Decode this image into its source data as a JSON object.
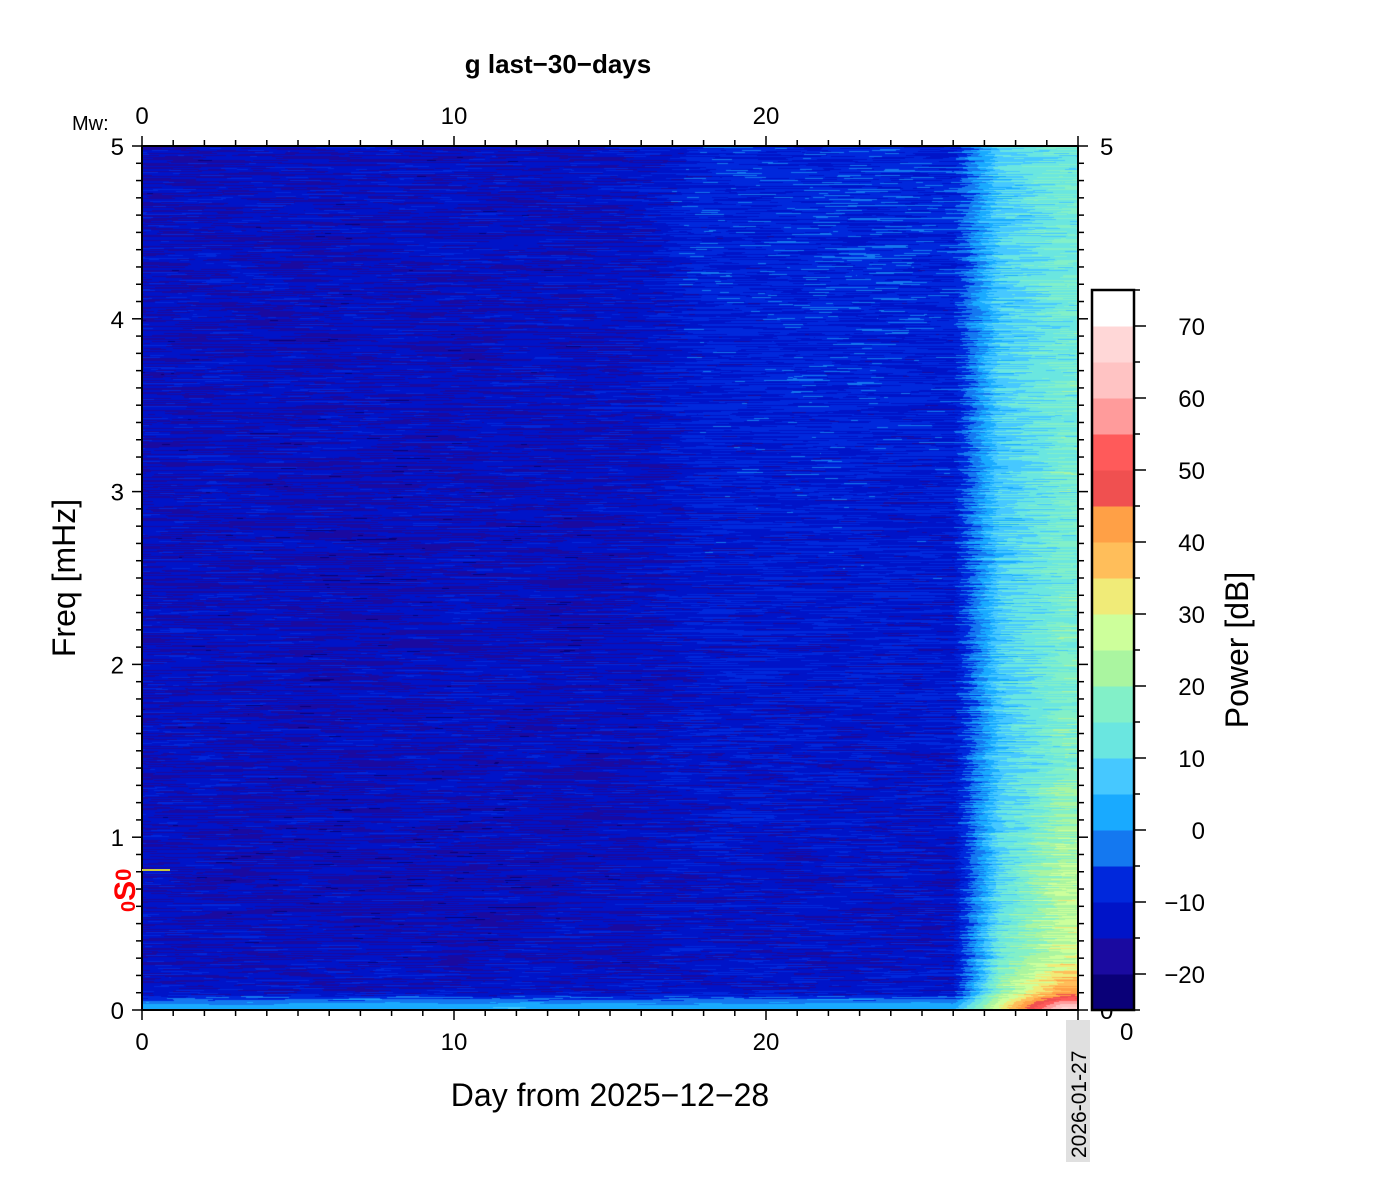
{
  "chart_data": {
    "type": "heatmap",
    "title": "g last−30−days",
    "xlabel": "Day from 2025−12−28",
    "ylabel": "Freq [mHz]",
    "colorbar_label": "Power [dB]",
    "top_axis_label": "Mw:",
    "xlim": [
      0,
      30
    ],
    "ylim": [
      0,
      5
    ],
    "x_ticks": [
      "0",
      "10",
      "20"
    ],
    "x_tick_values": [
      0,
      10,
      20
    ],
    "y_ticks": [
      "0",
      "1",
      "2",
      "3",
      "4",
      "5"
    ],
    "y_tick_values": [
      0,
      1,
      2,
      3,
      4,
      5
    ],
    "right_y_ticks": [
      "0",
      "5"
    ],
    "top_x_ticks": [
      "0",
      "10",
      "20"
    ],
    "end_date_label": "2026-01-27",
    "mode_marker": {
      "label_prefix": "0",
      "label": "S",
      "label_suffix": "0",
      "freq_mHz": 0.81,
      "label_color": "#ff0000",
      "line_color": "#c8c83c"
    },
    "colorbar": {
      "range": [
        -25,
        75
      ],
      "ticks": [
        "−20",
        "−10",
        "0",
        "10",
        "20",
        "30",
        "40",
        "50",
        "60",
        "70"
      ],
      "tick_values": [
        -20,
        -10,
        0,
        10,
        20,
        30,
        40,
        50,
        60,
        70
      ],
      "bottom_label": "0",
      "levels": [
        -25,
        -20,
        -15,
        -10,
        -5,
        0,
        5,
        10,
        15,
        20,
        25,
        30,
        35,
        40,
        45,
        50,
        55,
        60,
        65,
        70,
        75
      ],
      "colors": [
        "#0a0078",
        "#1a0aa0",
        "#0014c8",
        "#0028dc",
        "#1478f0",
        "#19aaff",
        "#46c8ff",
        "#6ae6e0",
        "#82f0c8",
        "#aaf5a0",
        "#cdff9b",
        "#f0eb78",
        "#ffbe5a",
        "#ffa046",
        "#f05050",
        "#ff5a5a",
        "#ff9b9b",
        "#ffc3c3",
        "#ffd7d7",
        "#ffffff"
      ]
    },
    "grid_days": [
      0,
      2,
      4,
      6,
      8,
      10,
      12,
      14,
      16,
      18,
      20,
      22,
      24,
      26,
      27.5,
      29.5
    ],
    "grid_freqs_mHz": [
      0.02,
      0.1,
      0.3,
      0.8,
      1.5,
      2.5,
      3.5,
      4.5,
      5.0
    ],
    "power_dB": [
      [
        3,
        3,
        3,
        3,
        3,
        4,
        4,
        3,
        3,
        3,
        3,
        3,
        3,
        3,
        30,
        65
      ],
      [
        -13,
        -13,
        -13,
        -13,
        -13,
        -13,
        -13,
        -13,
        -13,
        -12,
        -12,
        -12,
        -12,
        -12,
        20,
        42
      ],
      [
        -14,
        -14,
        -14,
        -14,
        -14,
        -15,
        -14,
        -14,
        -14,
        -13,
        -13,
        -13,
        -13,
        -13,
        14,
        28
      ],
      [
        -14,
        -14,
        -15,
        -15,
        -15,
        -15,
        -15,
        -14,
        -14,
        -13,
        -13,
        -13,
        -13,
        -13,
        10,
        24
      ],
      [
        -14,
        -14,
        -14,
        -15,
        -14,
        -14,
        -14,
        -14,
        -14,
        -12,
        -12,
        -12,
        -12,
        -12,
        8,
        16
      ],
      [
        -14,
        -14,
        -14,
        -15,
        -15,
        -14,
        -14,
        -15,
        -14,
        -11,
        -11,
        -11,
        -11,
        -11,
        8,
        15
      ],
      [
        -14,
        -14,
        -14,
        -14,
        -14,
        -14,
        -14,
        -14,
        -13,
        -10,
        -10,
        -9,
        -10,
        -10,
        8,
        15
      ],
      [
        -14,
        -14,
        -14,
        -14,
        -14,
        -14,
        -14,
        -14,
        -13,
        -9,
        -9,
        -8,
        -8,
        -9,
        8,
        14
      ],
      [
        -14,
        -14,
        -14,
        -14,
        -14,
        -14,
        -14,
        -14,
        -12,
        -9,
        -9,
        -8,
        -8,
        -9,
        8,
        14
      ]
    ]
  }
}
